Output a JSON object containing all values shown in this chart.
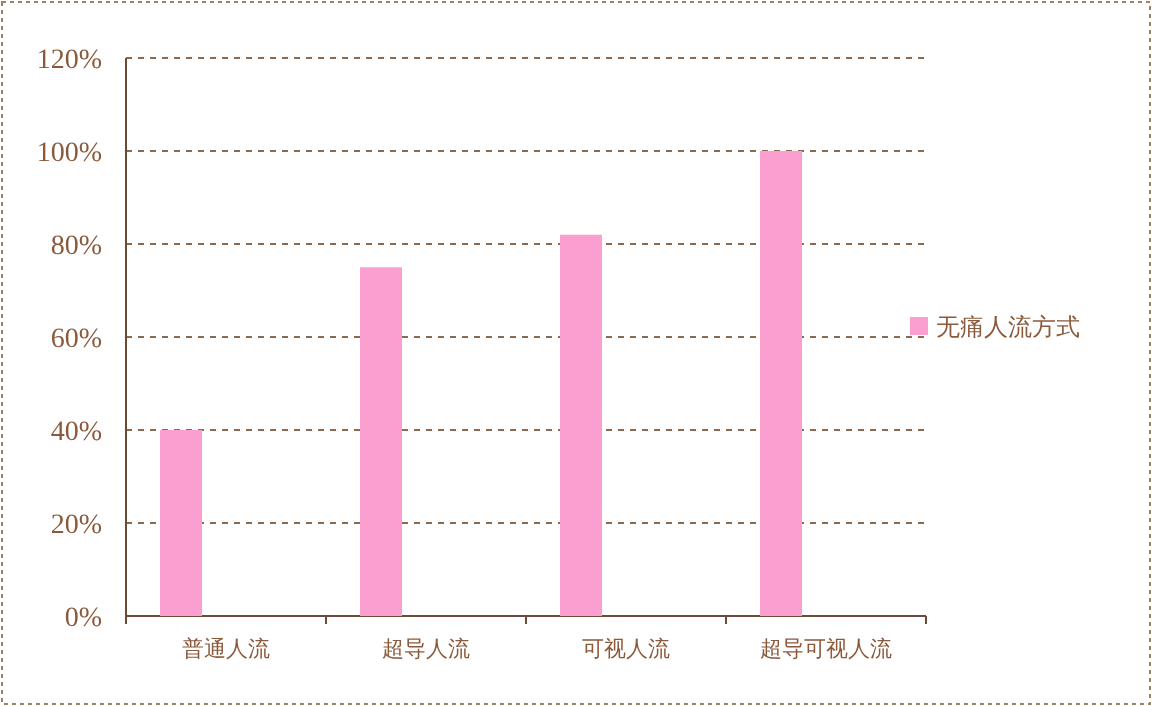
{
  "chart_data": {
    "type": "bar",
    "categories": [
      "普通人流",
      "超导人流",
      "可视人流",
      "超导可视人流"
    ],
    "series": [
      {
        "name": "无痛人流方式",
        "color": "#fa9fcf",
        "values": [
          40,
          75,
          82,
          100
        ]
      }
    ],
    "ylim": [
      0,
      120
    ],
    "yticks": [
      {
        "value": 0,
        "label": "0%"
      },
      {
        "value": 20,
        "label": "20%"
      },
      {
        "value": 40,
        "label": "40%"
      },
      {
        "value": 60,
        "label": "60%"
      },
      {
        "value": 80,
        "label": "80%"
      },
      {
        "value": 100,
        "label": "100%"
      },
      {
        "value": 120,
        "label": "120%"
      }
    ],
    "grid": "y",
    "legend": "right"
  }
}
